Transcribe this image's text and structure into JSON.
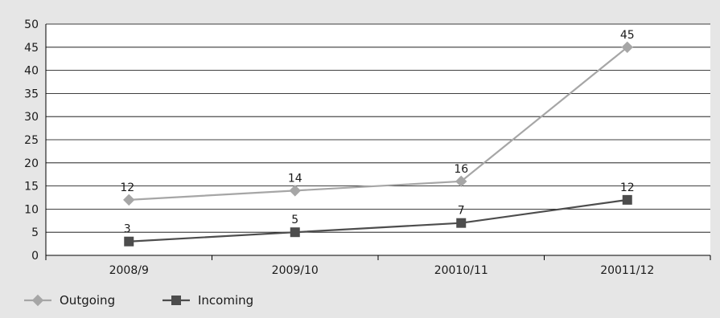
{
  "chart_data": {
    "type": "line",
    "categories": [
      "2008/9",
      "2009/10",
      "20010/11",
      "20011/12"
    ],
    "series": [
      {
        "name": "Outgoing",
        "values": [
          12,
          14,
          16,
          45
        ],
        "color": "#a6a6a6",
        "marker": "diamond"
      },
      {
        "name": "Incoming",
        "values": [
          3,
          5,
          7,
          12
        ],
        "color": "#4d4d4d",
        "marker": "square"
      }
    ],
    "ylim": [
      0,
      50
    ],
    "yticks": [
      "0",
      "5",
      "10",
      "15",
      "20",
      "25",
      "30",
      "35",
      "40",
      "45",
      "50"
    ],
    "grid": true,
    "legend": "bottom-left",
    "background": "#e6e6e6",
    "plot_background": "#ffffff"
  }
}
